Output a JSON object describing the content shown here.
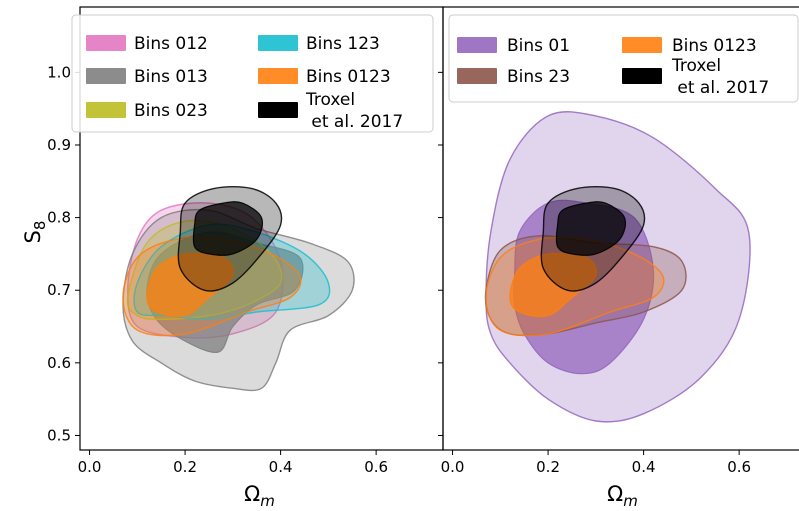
{
  "chart_data": [
    {
      "type": "contour",
      "panel": "left",
      "xlabel": "Ωm",
      "ylabel": "S8",
      "xlim": [
        -0.02,
        0.74
      ],
      "ylim": [
        0.48,
        1.09
      ],
      "xticks": [
        "0.0",
        "0.2",
        "0.4",
        "0.6"
      ],
      "yticks": [
        "0.5",
        "0.6",
        "0.7",
        "0.8",
        "0.9",
        "1.0"
      ],
      "legend_position": "top",
      "legend": [
        "Bins 012",
        "Bins 013",
        "Bins 023",
        "Bins 123",
        "Bins 0123",
        "Troxel\n et al. 2017"
      ],
      "series": [
        {
          "name": "Bins 012",
          "color": "#e377c2",
          "contours": [
            {
              "level": "outer",
              "points": [
                [
                  0.08,
                  0.7
                ],
                [
                  0.1,
                  0.77
                ],
                [
                  0.15,
                  0.81
                ],
                [
                  0.25,
                  0.82
                ],
                [
                  0.34,
                  0.8
                ],
                [
                  0.4,
                  0.74
                ],
                [
                  0.39,
                  0.67
                ],
                [
                  0.3,
                  0.64
                ],
                [
                  0.2,
                  0.635
                ],
                [
                  0.1,
                  0.65
                ]
              ]
            }
          ]
        },
        {
          "name": "Bins 013",
          "color": "#7f7f7f",
          "contours": [
            {
              "level": "outer",
              "points": [
                [
                  0.07,
                  0.68
                ],
                [
                  0.09,
                  0.75
                ],
                [
                  0.15,
                  0.8
                ],
                [
                  0.25,
                  0.81
                ],
                [
                  0.35,
                  0.785
                ],
                [
                  0.46,
                  0.765
                ],
                [
                  0.54,
                  0.74
                ],
                [
                  0.55,
                  0.7
                ],
                [
                  0.5,
                  0.665
                ],
                [
                  0.42,
                  0.645
                ],
                [
                  0.39,
                  0.6
                ],
                [
                  0.36,
                  0.565
                ],
                [
                  0.3,
                  0.565
                ],
                [
                  0.22,
                  0.575
                ],
                [
                  0.15,
                  0.6
                ],
                [
                  0.09,
                  0.63
                ]
              ]
            },
            {
              "level": "inner",
              "points": [
                [
                  0.12,
                  0.7
                ],
                [
                  0.15,
                  0.75
                ],
                [
                  0.25,
                  0.78
                ],
                [
                  0.35,
                  0.765
                ],
                [
                  0.44,
                  0.745
                ],
                [
                  0.43,
                  0.7
                ],
                [
                  0.35,
                  0.68
                ],
                [
                  0.3,
                  0.65
                ],
                [
                  0.27,
                  0.615
                ],
                [
                  0.2,
                  0.63
                ],
                [
                  0.14,
                  0.66
                ]
              ]
            }
          ]
        },
        {
          "name": "Bins 023",
          "color": "#bcbd22",
          "contours": [
            {
              "level": "outer",
              "points": [
                [
                  0.08,
                  0.69
                ],
                [
                  0.12,
                  0.765
                ],
                [
                  0.2,
                  0.795
                ],
                [
                  0.3,
                  0.785
                ],
                [
                  0.38,
                  0.75
                ],
                [
                  0.4,
                  0.71
                ],
                [
                  0.33,
                  0.68
                ],
                [
                  0.25,
                  0.665
                ],
                [
                  0.15,
                  0.66
                ],
                [
                  0.1,
                  0.665
                ]
              ]
            }
          ]
        },
        {
          "name": "Bins 123",
          "color": "#17becf",
          "contours": [
            {
              "level": "outer",
              "points": [
                [
                  0.1,
                  0.71
                ],
                [
                  0.15,
                  0.76
                ],
                [
                  0.25,
                  0.79
                ],
                [
                  0.35,
                  0.78
                ],
                [
                  0.45,
                  0.75
                ],
                [
                  0.5,
                  0.71
                ],
                [
                  0.48,
                  0.68
                ],
                [
                  0.35,
                  0.67
                ],
                [
                  0.25,
                  0.66
                ],
                [
                  0.16,
                  0.665
                ],
                [
                  0.1,
                  0.67
                ]
              ]
            }
          ]
        },
        {
          "name": "Bins 0123",
          "color": "#ff7f0e",
          "contours": [
            {
              "level": "outer",
              "points": [
                [
                  0.07,
                  0.69
                ],
                [
                  0.1,
                  0.745
                ],
                [
                  0.18,
                  0.77
                ],
                [
                  0.28,
                  0.77
                ],
                [
                  0.38,
                  0.75
                ],
                [
                  0.44,
                  0.72
                ],
                [
                  0.42,
                  0.69
                ],
                [
                  0.33,
                  0.67
                ],
                [
                  0.2,
                  0.64
                ],
                [
                  0.1,
                  0.645
                ]
              ]
            },
            {
              "level": "inner",
              "points": [
                [
                  0.12,
                  0.69
                ],
                [
                  0.14,
                  0.73
                ],
                [
                  0.2,
                  0.75
                ],
                [
                  0.28,
                  0.745
                ],
                [
                  0.3,
                  0.72
                ],
                [
                  0.25,
                  0.69
                ],
                [
                  0.2,
                  0.665
                ],
                [
                  0.14,
                  0.67
                ]
              ]
            }
          ]
        },
        {
          "name": "Troxel\n et al. 2017",
          "color": "#000000",
          "contours": [
            {
              "level": "outer",
              "points": [
                [
                  0.19,
                  0.78
                ],
                [
                  0.2,
                  0.82
                ],
                [
                  0.26,
                  0.84
                ],
                [
                  0.34,
                  0.84
                ],
                [
                  0.39,
                  0.82
                ],
                [
                  0.4,
                  0.79
                ],
                [
                  0.36,
                  0.75
                ],
                [
                  0.3,
                  0.71
                ],
                [
                  0.24,
                  0.7
                ],
                [
                  0.19,
                  0.73
                ]
              ]
            },
            {
              "level": "inner",
              "points": [
                [
                  0.22,
                  0.79
                ],
                [
                  0.23,
                  0.81
                ],
                [
                  0.28,
                  0.82
                ],
                [
                  0.32,
                  0.82
                ],
                [
                  0.36,
                  0.8
                ],
                [
                  0.35,
                  0.77
                ],
                [
                  0.3,
                  0.75
                ],
                [
                  0.25,
                  0.75
                ],
                [
                  0.22,
                  0.76
                ]
              ]
            }
          ]
        }
      ]
    },
    {
      "type": "contour",
      "panel": "right",
      "xlabel": "Ωm",
      "ylabel": "",
      "xlim": [
        -0.02,
        0.74
      ],
      "ylim": [
        0.48,
        1.09
      ],
      "xticks": [
        "0.0",
        "0.2",
        "0.4",
        "0.6"
      ],
      "yticks": [],
      "legend_position": "top",
      "legend": [
        "Bins 01",
        "Bins 23",
        "Bins 0123",
        "Troxel\n et al. 2017"
      ],
      "series": [
        {
          "name": "Bins 01",
          "color": "#9467bd",
          "contours": [
            {
              "level": "outer",
              "points": [
                [
                  0.07,
                  0.69
                ],
                [
                  0.08,
                  0.78
                ],
                [
                  0.12,
                  0.88
                ],
                [
                  0.2,
                  0.94
                ],
                [
                  0.3,
                  0.94
                ],
                [
                  0.42,
                  0.91
                ],
                [
                  0.55,
                  0.84
                ],
                [
                  0.62,
                  0.78
                ],
                [
                  0.6,
                  0.66
                ],
                [
                  0.52,
                  0.58
                ],
                [
                  0.4,
                  0.53
                ],
                [
                  0.3,
                  0.52
                ],
                [
                  0.2,
                  0.55
                ],
                [
                  0.12,
                  0.6
                ],
                [
                  0.08,
                  0.64
                ]
              ]
            },
            {
              "level": "inner",
              "points": [
                [
                  0.13,
                  0.72
                ],
                [
                  0.14,
                  0.78
                ],
                [
                  0.2,
                  0.82
                ],
                [
                  0.28,
                  0.82
                ],
                [
                  0.38,
                  0.8
                ],
                [
                  0.42,
                  0.73
                ],
                [
                  0.4,
                  0.66
                ],
                [
                  0.33,
                  0.6
                ],
                [
                  0.27,
                  0.585
                ],
                [
                  0.2,
                  0.6
                ],
                [
                  0.15,
                  0.64
                ],
                [
                  0.13,
                  0.68
                ]
              ]
            }
          ]
        },
        {
          "name": "Bins 23",
          "color": "#8c564b",
          "contours": [
            {
              "level": "outer",
              "points": [
                [
                  0.07,
                  0.7
                ],
                [
                  0.1,
                  0.755
                ],
                [
                  0.18,
                  0.775
                ],
                [
                  0.3,
                  0.765
                ],
                [
                  0.42,
                  0.76
                ],
                [
                  0.48,
                  0.74
                ],
                [
                  0.48,
                  0.7
                ],
                [
                  0.4,
                  0.67
                ],
                [
                  0.3,
                  0.655
                ],
                [
                  0.2,
                  0.64
                ],
                [
                  0.12,
                  0.64
                ],
                [
                  0.08,
                  0.66
                ]
              ]
            }
          ]
        },
        {
          "name": "Bins 0123",
          "color": "#ff7f0e",
          "contours": [
            {
              "level": "outer",
              "points": [
                [
                  0.07,
                  0.69
                ],
                [
                  0.1,
                  0.745
                ],
                [
                  0.18,
                  0.77
                ],
                [
                  0.28,
                  0.77
                ],
                [
                  0.38,
                  0.75
                ],
                [
                  0.44,
                  0.72
                ],
                [
                  0.42,
                  0.69
                ],
                [
                  0.33,
                  0.67
                ],
                [
                  0.2,
                  0.64
                ],
                [
                  0.1,
                  0.645
                ]
              ]
            },
            {
              "level": "inner",
              "points": [
                [
                  0.12,
                  0.69
                ],
                [
                  0.14,
                  0.73
                ],
                [
                  0.2,
                  0.75
                ],
                [
                  0.28,
                  0.745
                ],
                [
                  0.3,
                  0.72
                ],
                [
                  0.25,
                  0.69
                ],
                [
                  0.2,
                  0.665
                ],
                [
                  0.14,
                  0.67
                ]
              ]
            }
          ]
        },
        {
          "name": "Troxel\n et al. 2017",
          "color": "#000000",
          "contours": [
            {
              "level": "outer",
              "points": [
                [
                  0.19,
                  0.78
                ],
                [
                  0.2,
                  0.82
                ],
                [
                  0.26,
                  0.84
                ],
                [
                  0.34,
                  0.84
                ],
                [
                  0.39,
                  0.82
                ],
                [
                  0.4,
                  0.79
                ],
                [
                  0.36,
                  0.75
                ],
                [
                  0.3,
                  0.71
                ],
                [
                  0.24,
                  0.7
                ],
                [
                  0.19,
                  0.73
                ]
              ]
            },
            {
              "level": "inner",
              "points": [
                [
                  0.22,
                  0.79
                ],
                [
                  0.23,
                  0.81
                ],
                [
                  0.28,
                  0.82
                ],
                [
                  0.32,
                  0.82
                ],
                [
                  0.36,
                  0.8
                ],
                [
                  0.35,
                  0.77
                ],
                [
                  0.3,
                  0.75
                ],
                [
                  0.25,
                  0.75
                ],
                [
                  0.22,
                  0.76
                ]
              ]
            }
          ]
        }
      ]
    }
  ]
}
